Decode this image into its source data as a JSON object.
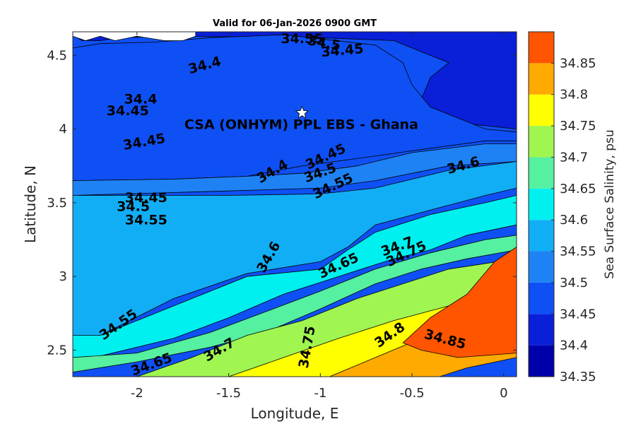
{
  "chart_data": {
    "type": "contourf",
    "title": "Valid for 06-Jan-2026 0900 GMT",
    "xlabel": "Longitude, E",
    "ylabel": "Latitude, N",
    "xlim": [
      -2.35,
      0.07
    ],
    "ylim": [
      2.32,
      4.66
    ],
    "x_ticks": [
      -2,
      -1.5,
      -1,
      -0.5,
      0
    ],
    "x_tick_labels": [
      "-2",
      "-1.5",
      "-1",
      "-0.5",
      "0"
    ],
    "y_ticks": [
      2.5,
      3,
      3.5,
      4,
      4.5
    ],
    "y_tick_labels": [
      "2.5",
      "3",
      "3.5",
      "4",
      "4.5"
    ],
    "colorbar": {
      "label": "Sea Surface Salinity, psu",
      "levels": [
        34.35,
        34.4,
        34.45,
        34.5,
        34.55,
        34.6,
        34.65,
        34.7,
        34.75,
        34.8,
        34.85,
        34.9
      ],
      "tick_labels": [
        "34.35",
        "34.4",
        "34.45",
        "34.5",
        "34.55",
        "34.6",
        "34.65",
        "34.7",
        "34.75",
        "34.8",
        "34.85"
      ],
      "colors": [
        "#0000AA",
        "#0A1FD8",
        "#0F50F5",
        "#1E82F5",
        "#12AEF5",
        "#00F0F0",
        "#55F0A0",
        "#A0F550",
        "#FFFF00",
        "#FFAA00",
        "#FF5500",
        "#FF0000"
      ]
    },
    "zones": [
      {
        "level": 34.4,
        "points": [
          [
            -2.35,
            4.64
          ],
          [
            -2.3,
            4.6
          ],
          [
            -2.2,
            4.6
          ],
          [
            -2.1,
            4.62
          ],
          [
            -1.8,
            4.63
          ],
          [
            -1.0,
            4.62
          ],
          [
            -0.6,
            4.6
          ],
          [
            -0.3,
            4.45
          ],
          [
            -0.4,
            4.35
          ],
          [
            -0.45,
            4.2
          ],
          [
            -0.3,
            4.05
          ],
          [
            0.07,
            4.0
          ],
          [
            0.07,
            4.66
          ],
          [
            -2.35,
            4.66
          ]
        ]
      },
      {
        "level": 34.45,
        "points": [
          [
            -2.35,
            4.55
          ],
          [
            -2.2,
            4.58
          ],
          [
            -1.9,
            4.59
          ],
          [
            -1.6,
            4.62
          ],
          [
            -1.2,
            4.64
          ],
          [
            -0.7,
            4.57
          ],
          [
            -0.55,
            4.45
          ],
          [
            -0.5,
            4.3
          ],
          [
            -0.4,
            4.15
          ],
          [
            -0.1,
            4.0
          ],
          [
            0.07,
            3.98
          ],
          [
            0.07,
            3.92
          ],
          [
            -0.1,
            3.92
          ],
          [
            -0.4,
            3.87
          ],
          [
            -0.8,
            3.8
          ],
          [
            -1.1,
            3.75
          ],
          [
            -1.4,
            3.68
          ],
          [
            -1.8,
            3.66
          ],
          [
            -2.35,
            3.65
          ]
        ]
      },
      {
        "level": 34.5,
        "points": [
          [
            -2.35,
            3.65
          ],
          [
            -1.8,
            3.66
          ],
          [
            -1.4,
            3.68
          ],
          [
            -1.1,
            3.7
          ],
          [
            -0.8,
            3.75
          ],
          [
            -0.5,
            3.84
          ],
          [
            -0.1,
            3.9
          ],
          [
            0.07,
            3.9
          ],
          [
            0.07,
            3.78
          ],
          [
            -0.3,
            3.75
          ],
          [
            -0.7,
            3.65
          ],
          [
            -1.0,
            3.6
          ],
          [
            -1.5,
            3.58
          ],
          [
            -2.35,
            3.55
          ]
        ]
      },
      {
        "level": 34.55,
        "points": [
          [
            -2.35,
            3.55
          ],
          [
            -1.5,
            3.55
          ],
          [
            -1.0,
            3.56
          ],
          [
            -0.7,
            3.6
          ],
          [
            -0.3,
            3.72
          ],
          [
            0.07,
            3.78
          ],
          [
            0.07,
            3.6
          ],
          [
            -0.1,
            3.55
          ],
          [
            -0.4,
            3.45
          ],
          [
            -0.7,
            3.35
          ],
          [
            -0.85,
            3.2
          ],
          [
            -1.0,
            3.1
          ],
          [
            -1.4,
            3.02
          ],
          [
            -1.8,
            2.85
          ],
          [
            -2.2,
            2.6
          ],
          [
            -2.35,
            2.55
          ]
        ]
      },
      {
        "level": 34.6,
        "points": [
          [
            -2.35,
            2.6
          ],
          [
            -2.2,
            2.6
          ],
          [
            -1.8,
            2.8
          ],
          [
            -1.4,
            3.0
          ],
          [
            -1.0,
            3.05
          ],
          [
            -0.85,
            3.18
          ],
          [
            -0.7,
            3.3
          ],
          [
            -0.4,
            3.42
          ],
          [
            -0.1,
            3.5
          ],
          [
            0.07,
            3.55
          ],
          [
            0.07,
            3.35
          ],
          [
            -0.2,
            3.28
          ],
          [
            -0.4,
            3.18
          ],
          [
            -0.6,
            3.12
          ],
          [
            -0.9,
            3.0
          ],
          [
            -1.2,
            2.88
          ],
          [
            -1.5,
            2.72
          ],
          [
            -1.8,
            2.58
          ],
          [
            -2.2,
            2.46
          ],
          [
            -2.35,
            2.45
          ]
        ]
      },
      {
        "level": 34.65,
        "points": [
          [
            -2.35,
            2.45
          ],
          [
            -2.0,
            2.48
          ],
          [
            -1.6,
            2.62
          ],
          [
            -1.3,
            2.76
          ],
          [
            -1.0,
            2.9
          ],
          [
            -0.7,
            3.05
          ],
          [
            -0.4,
            3.16
          ],
          [
            -0.1,
            3.25
          ],
          [
            0.07,
            3.28
          ],
          [
            0.07,
            3.18
          ],
          [
            -0.2,
            3.12
          ],
          [
            -0.45,
            3.05
          ],
          [
            -0.7,
            2.95
          ],
          [
            -1.0,
            2.78
          ],
          [
            -1.3,
            2.62
          ],
          [
            -1.6,
            2.52
          ],
          [
            -2.0,
            2.42
          ],
          [
            -2.35,
            2.35
          ]
        ]
      },
      {
        "level": 34.7,
        "points": [
          [
            -2.0,
            2.32
          ],
          [
            -1.7,
            2.45
          ],
          [
            -1.4,
            2.6
          ],
          [
            -1.1,
            2.7
          ],
          [
            -0.8,
            2.85
          ],
          [
            -0.55,
            2.95
          ],
          [
            -0.3,
            3.05
          ],
          [
            0.07,
            3.12
          ],
          [
            0.07,
            2.85
          ],
          [
            -0.15,
            2.8
          ],
          [
            -0.4,
            2.72
          ],
          [
            -0.7,
            2.62
          ],
          [
            -1.0,
            2.5
          ],
          [
            -1.3,
            2.38
          ],
          [
            -1.5,
            2.32
          ]
        ]
      },
      {
        "level": 34.75,
        "points": [
          [
            -1.5,
            2.32
          ],
          [
            -1.2,
            2.45
          ],
          [
            -0.9,
            2.58
          ],
          [
            -0.6,
            2.7
          ],
          [
            -0.3,
            2.8
          ],
          [
            0.07,
            2.86
          ],
          [
            0.07,
            2.6
          ],
          [
            -0.25,
            2.55
          ],
          [
            -0.5,
            2.45
          ],
          [
            -0.8,
            2.35
          ],
          [
            -0.9,
            2.32
          ]
        ]
      },
      {
        "level": 34.8,
        "points": [
          [
            -0.95,
            2.32
          ],
          [
            -0.7,
            2.45
          ],
          [
            -0.45,
            2.58
          ],
          [
            -0.2,
            2.7
          ],
          [
            0.07,
            2.75
          ],
          [
            0.07,
            2.45
          ],
          [
            -0.2,
            2.38
          ],
          [
            -0.35,
            2.32
          ]
        ]
      },
      {
        "level": 34.85,
        "points": [
          [
            -0.55,
            2.55
          ],
          [
            -0.4,
            2.72
          ],
          [
            -0.2,
            2.88
          ],
          [
            -0.05,
            3.1
          ],
          [
            0.07,
            3.2
          ],
          [
            0.07,
            2.48
          ],
          [
            -0.25,
            2.45
          ],
          [
            -0.45,
            2.5
          ]
        ]
      }
    ],
    "contour_labels": [
      {
        "text": "34.55",
        "x": -1.1,
        "y": 4.61,
        "angle": 0
      },
      {
        "text": "34.5",
        "x": -0.98,
        "y": 4.58,
        "angle": 10
      },
      {
        "text": "34.45",
        "x": -0.88,
        "y": 4.53,
        "angle": -5
      },
      {
        "text": "34.4",
        "x": -1.63,
        "y": 4.43,
        "angle": -15
      },
      {
        "text": "34.4",
        "x": -1.98,
        "y": 4.2,
        "angle": 0
      },
      {
        "text": "34.45",
        "x": -2.05,
        "y": 4.12,
        "angle": 0
      },
      {
        "text": "34.45",
        "x": -1.96,
        "y": 3.91,
        "angle": -10
      },
      {
        "text": "34.4",
        "x": -1.26,
        "y": 3.71,
        "angle": -30
      },
      {
        "text": "34.45",
        "x": -0.97,
        "y": 3.81,
        "angle": -25
      },
      {
        "text": "34.5",
        "x": -1.0,
        "y": 3.7,
        "angle": -20
      },
      {
        "text": "34.55",
        "x": -0.93,
        "y": 3.61,
        "angle": -25
      },
      {
        "text": "34.6",
        "x": -0.22,
        "y": 3.75,
        "angle": -15
      },
      {
        "text": "34.45",
        "x": -1.95,
        "y": 3.53,
        "angle": 0
      },
      {
        "text": "34.5",
        "x": -2.02,
        "y": 3.47,
        "angle": 0
      },
      {
        "text": "34.55",
        "x": -1.95,
        "y": 3.38,
        "angle": 0
      },
      {
        "text": "34.6",
        "x": -1.28,
        "y": 3.13,
        "angle": -60
      },
      {
        "text": "34.65",
        "x": -0.9,
        "y": 3.07,
        "angle": -25
      },
      {
        "text": "34.7",
        "x": -0.58,
        "y": 3.2,
        "angle": -20
      },
      {
        "text": "34.75",
        "x": -0.53,
        "y": 3.15,
        "angle": -25
      },
      {
        "text": "34.55",
        "x": -2.1,
        "y": 2.67,
        "angle": -35
      },
      {
        "text": "34.65",
        "x": -1.92,
        "y": 2.4,
        "angle": -20
      },
      {
        "text": "34.7",
        "x": -1.55,
        "y": 2.5,
        "angle": -30
      },
      {
        "text": "34.75",
        "x": -1.07,
        "y": 2.52,
        "angle": -80
      },
      {
        "text": "34.8",
        "x": -0.62,
        "y": 2.6,
        "angle": -35
      },
      {
        "text": "34.85",
        "x": -0.32,
        "y": 2.57,
        "angle": 15
      }
    ],
    "site": {
      "name": "CSA (ONHYM) PPL EBS  - Ghana",
      "x": -1.1,
      "y": 4.11
    }
  }
}
